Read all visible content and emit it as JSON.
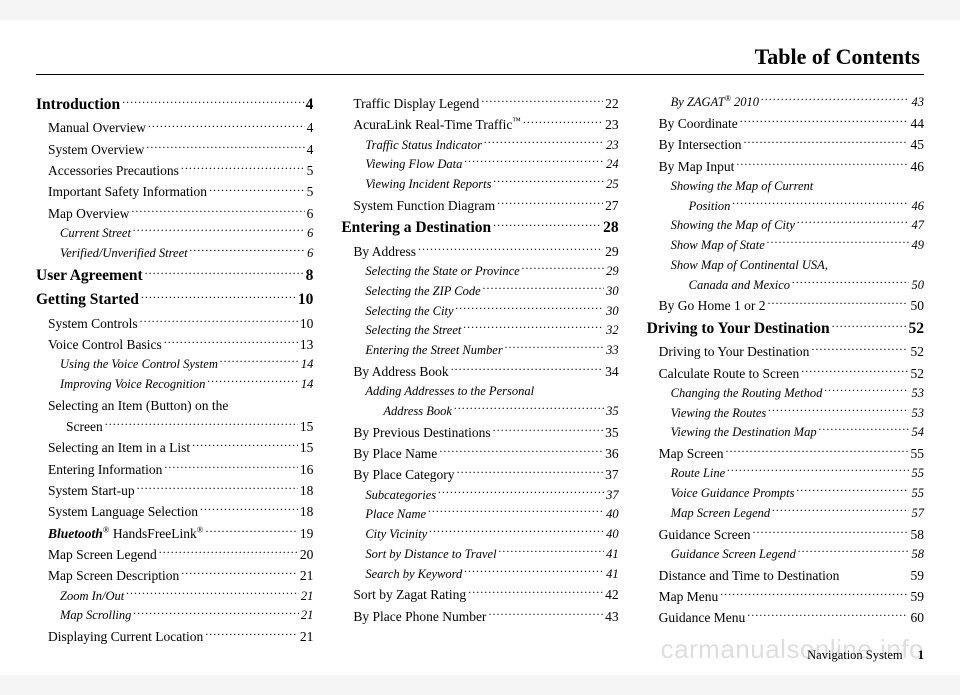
{
  "header": {
    "title": "Table of Contents"
  },
  "footer": {
    "label": "Navigation System",
    "page": "1"
  },
  "watermark": "carmanualsonline.info",
  "columns": [
    [
      {
        "level": 0,
        "label": "Introduction",
        "page": "4"
      },
      {
        "level": 1,
        "label": "Manual Overview",
        "page": "4"
      },
      {
        "level": 1,
        "label": "System Overview",
        "page": "4"
      },
      {
        "level": 1,
        "label": "Accessories Precautions",
        "page": "5"
      },
      {
        "level": 1,
        "label": "Important Safety Information",
        "page": "5"
      },
      {
        "level": 1,
        "label": "Map Overview",
        "page": "6"
      },
      {
        "level": 2,
        "label": "Current Street",
        "page": "6"
      },
      {
        "level": 2,
        "label": "Verified/Unverified Street",
        "page": "6"
      },
      {
        "level": 0,
        "label": "User Agreement",
        "page": "8"
      },
      {
        "level": 0,
        "label": "Getting Started",
        "page": "10"
      },
      {
        "level": 1,
        "label": "System Controls",
        "page": "10"
      },
      {
        "level": 1,
        "label": "Voice Control Basics",
        "page": "13"
      },
      {
        "level": 2,
        "label": "Using the Voice Control System",
        "page": "14"
      },
      {
        "level": 2,
        "label": "Improving Voice Recognition",
        "page": "14"
      },
      {
        "level": 1,
        "label": "Selecting an Item (Button) on the",
        "wrap": true
      },
      {
        "level": "1-cont",
        "label": "Screen",
        "page": "15"
      },
      {
        "level": 1,
        "label": "Selecting an Item in a List",
        "page": "15"
      },
      {
        "level": 1,
        "label": "Entering Information",
        "page": "16"
      },
      {
        "level": 1,
        "label": "System Start-up",
        "page": "18"
      },
      {
        "level": 1,
        "label": "System Language Selection",
        "page": "18"
      },
      {
        "level": 1,
        "label_html": "<span class=\"bt\">Bluetooth</span><span class=\"sup\">®</span> HandsFreeLink<span class=\"sup\">®</span>",
        "page": "19"
      },
      {
        "level": 1,
        "label": "Map Screen Legend",
        "page": "20"
      },
      {
        "level": 1,
        "label": "Map Screen Description",
        "page": "21"
      },
      {
        "level": 2,
        "label": "Zoom In/Out",
        "page": "21"
      },
      {
        "level": 2,
        "label": "Map Scrolling",
        "page": "21"
      },
      {
        "level": 1,
        "label": "Displaying Current Location",
        "page": "21"
      }
    ],
    [
      {
        "level": 1,
        "label": "Traffic Display Legend",
        "page": "22"
      },
      {
        "level": 1,
        "label_html": "AcuraLink Real-Time Traffic<span class=\"sup\">™</span>",
        "page": "23"
      },
      {
        "level": 2,
        "label": "Traffic Status Indicator",
        "page": "23"
      },
      {
        "level": 2,
        "label": "Viewing Flow Data",
        "page": "24"
      },
      {
        "level": 2,
        "label": "Viewing Incident Reports",
        "page": "25"
      },
      {
        "level": 1,
        "label": "System Function Diagram",
        "page": "27"
      },
      {
        "level": 0,
        "label": "Entering a Destination",
        "page": "28"
      },
      {
        "level": 1,
        "label": "By Address",
        "page": "29"
      },
      {
        "level": 2,
        "label": "Selecting the State or Province",
        "page": "29"
      },
      {
        "level": 2,
        "label": "Selecting the ZIP Code",
        "page": "30"
      },
      {
        "level": 2,
        "label": "Selecting the City",
        "page": "30"
      },
      {
        "level": 2,
        "label": "Selecting the Street",
        "page": "32"
      },
      {
        "level": 2,
        "label": "Entering the Street Number",
        "page": "33"
      },
      {
        "level": 1,
        "label": "By Address Book",
        "page": "34"
      },
      {
        "level": 2,
        "label": "Adding Addresses to the Personal",
        "wrap": true
      },
      {
        "level": "2-cont",
        "label": "Address Book",
        "page": "35"
      },
      {
        "level": 1,
        "label": "By Previous Destinations",
        "page": "35"
      },
      {
        "level": 1,
        "label": "By Place Name",
        "page": "36"
      },
      {
        "level": 1,
        "label": "By Place Category",
        "page": "37"
      },
      {
        "level": 2,
        "label": "Subcategories",
        "page": "37"
      },
      {
        "level": 2,
        "label": "Place Name",
        "page": "40"
      },
      {
        "level": 2,
        "label": "City Vicinity",
        "page": "40"
      },
      {
        "level": 2,
        "label": "Sort by Distance to Travel",
        "page": "41"
      },
      {
        "level": 2,
        "label": "Search by Keyword",
        "page": "41"
      },
      {
        "level": 1,
        "label": "Sort by Zagat Rating",
        "page": "42"
      },
      {
        "level": 1,
        "label": "By Place Phone Number",
        "page": "43"
      }
    ],
    [
      {
        "level": 2,
        "label_html": "By ZAGAT<span class=\"sup\">®</span> 2010",
        "page": "43"
      },
      {
        "level": 1,
        "label": "By Coordinate",
        "page": "44"
      },
      {
        "level": 1,
        "label": "By Intersection",
        "page": "45"
      },
      {
        "level": 1,
        "label": "By Map Input",
        "page": "46"
      },
      {
        "level": 2,
        "label": "Showing the Map of Current",
        "wrap": true
      },
      {
        "level": "2-cont",
        "label": "Position",
        "page": "46"
      },
      {
        "level": 2,
        "label": "Showing the Map of City",
        "page": "47"
      },
      {
        "level": 2,
        "label": "Show Map of State",
        "page": "49"
      },
      {
        "level": 2,
        "label": "Show Map of Continental USA,",
        "wrap": true
      },
      {
        "level": "2-cont",
        "label": "Canada and Mexico",
        "page": "50"
      },
      {
        "level": 1,
        "label": "By Go Home 1 or 2",
        "page": "50"
      },
      {
        "level": 0,
        "label": "Driving to Your Destination",
        "page": "52"
      },
      {
        "level": 1,
        "label": "Driving to Your Destination",
        "page": "52"
      },
      {
        "level": 1,
        "label": "Calculate Route to Screen",
        "page": "52"
      },
      {
        "level": 2,
        "label": "Changing the Routing Method",
        "page": "53"
      },
      {
        "level": 2,
        "label": "Viewing the Routes",
        "page": "53"
      },
      {
        "level": 2,
        "label": "Viewing the Destination Map",
        "page": "54"
      },
      {
        "level": 1,
        "label": "Map Screen",
        "page": "55"
      },
      {
        "level": 2,
        "label": "Route Line",
        "page": "55"
      },
      {
        "level": 2,
        "label": "Voice Guidance Prompts",
        "page": "55"
      },
      {
        "level": 2,
        "label": "Map Screen Legend",
        "page": "57"
      },
      {
        "level": 1,
        "label": "Guidance Screen",
        "page": "58"
      },
      {
        "level": 2,
        "label": "Guidance Screen Legend",
        "page": "58"
      },
      {
        "level": 1,
        "label": "Distance and Time to Destination",
        "page": "59",
        "noleader": true
      },
      {
        "level": 1,
        "label": "Map Menu",
        "page": "59"
      },
      {
        "level": 1,
        "label": "Guidance Menu",
        "page": "60"
      }
    ]
  ]
}
